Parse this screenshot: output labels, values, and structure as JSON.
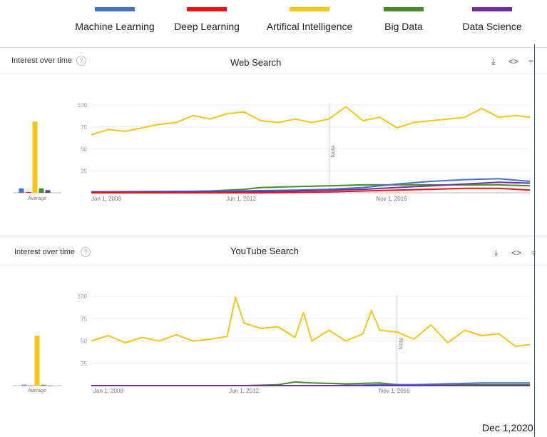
{
  "legend": [
    {
      "label": "Machine Learning",
      "color": "#4472c4"
    },
    {
      "label": "Deep Learning",
      "color": "#ee1111"
    },
    {
      "label": "Artifical Intelligence",
      "color": "#f5c518"
    },
    {
      "label": "Big Data",
      "color": "#4a8a2e"
    },
    {
      "label": "Data Science",
      "color": "#7030a0"
    }
  ],
  "panels": [
    {
      "heading": "Interest over time",
      "title": "Web Search",
      "avg_label": "Average",
      "note": "Note",
      "icons": [
        "download-icon",
        "embed-icon",
        "share-icon"
      ]
    },
    {
      "heading": "Interest over time",
      "title": "YouTube Search",
      "avg_label": "Average",
      "note": "Note",
      "icons": [
        "download-icon",
        "embed-icon",
        "share-icon"
      ]
    }
  ],
  "marker_date": "Dec 1,2020",
  "chart_data": [
    {
      "type": "line",
      "title": "Web Search",
      "x_ticks": [
        "Jan 1, 2008",
        "Jun 1, 2012",
        "Nov 1, 2016"
      ],
      "x_range": [
        "2008-01-01",
        "2020-12-01"
      ],
      "y_ticks": [
        25,
        50,
        75,
        100
      ],
      "ylim": [
        0,
        100
      ],
      "grid": true,
      "note_date": "2015-01-01",
      "averages": [
        {
          "name": "Machine Learning",
          "value": 5
        },
        {
          "name": "Deep Learning",
          "value": 1
        },
        {
          "name": "Artifical Intelligence",
          "value": 81
        },
        {
          "name": "Big Data",
          "value": 5
        },
        {
          "name": "Data Science",
          "value": 3
        }
      ],
      "series": [
        {
          "name": "Artifical Intelligence",
          "x": [
            "2008-01-01",
            "2008-07-01",
            "2009-01-01",
            "2009-07-01",
            "2010-01-01",
            "2010-07-01",
            "2011-01-01",
            "2011-07-01",
            "2012-01-01",
            "2012-07-01",
            "2013-01-01",
            "2013-07-01",
            "2014-01-01",
            "2014-07-01",
            "2015-01-01",
            "2015-07-01",
            "2016-01-01",
            "2016-07-01",
            "2017-01-01",
            "2017-07-01",
            "2018-01-01",
            "2018-07-01",
            "2019-01-01",
            "2019-07-01",
            "2020-01-01",
            "2020-07-01",
            "2020-12-01"
          ],
          "values": [
            66,
            72,
            70,
            74,
            78,
            80,
            88,
            84,
            90,
            92,
            82,
            80,
            84,
            80,
            84,
            98,
            82,
            86,
            74,
            80,
            82,
            84,
            86,
            96,
            86,
            88,
            86
          ]
        },
        {
          "name": "Big Data",
          "x": [
            "2008-01-01",
            "2010-01-01",
            "2011-07-01",
            "2012-07-01",
            "2013-01-01",
            "2014-01-01",
            "2015-01-01",
            "2016-01-01",
            "2017-01-01",
            "2018-01-01",
            "2019-01-01",
            "2020-01-01",
            "2020-12-01"
          ],
          "values": [
            1,
            1,
            2,
            4,
            6,
            7,
            8,
            9,
            9,
            9,
            9,
            9,
            8
          ]
        },
        {
          "name": "Machine Learning",
          "x": [
            "2008-01-01",
            "2012-01-01",
            "2014-01-01",
            "2015-01-01",
            "2016-01-01",
            "2017-01-01",
            "2018-01-01",
            "2019-01-01",
            "2020-01-01",
            "2020-12-01"
          ],
          "values": [
            1,
            2,
            3,
            4,
            6,
            10,
            13,
            15,
            16,
            13
          ]
        },
        {
          "name": "Data Science",
          "x": [
            "2008-01-01",
            "2012-01-01",
            "2014-01-01",
            "2015-01-01",
            "2016-01-01",
            "2017-01-01",
            "2018-01-01",
            "2019-01-01",
            "2020-01-01",
            "2020-12-01"
          ],
          "values": [
            1,
            1,
            2,
            3,
            4,
            6,
            8,
            10,
            12,
            11
          ]
        },
        {
          "name": "Deep Learning",
          "x": [
            "2008-01-01",
            "2013-01-01",
            "2015-01-01",
            "2016-01-01",
            "2017-01-01",
            "2018-01-01",
            "2019-01-01",
            "2020-01-01",
            "2020-12-01"
          ],
          "values": [
            0,
            0,
            1,
            2,
            3,
            4,
            5,
            5,
            3
          ]
        }
      ]
    },
    {
      "type": "line",
      "title": "YouTube Search",
      "x_ticks": [
        "Jan 1, 2008",
        "Jun 1, 2012",
        "Nov 1, 2016"
      ],
      "x_range": [
        "2008-01-01",
        "2020-12-01"
      ],
      "y_ticks": [
        25,
        50,
        75,
        100
      ],
      "ylim": [
        0,
        100
      ],
      "grid": true,
      "note_date": "2017-01-01",
      "averages": [
        {
          "name": "Machine Learning",
          "value": 1
        },
        {
          "name": "Deep Learning",
          "value": 0
        },
        {
          "name": "Artifical Intelligence",
          "value": 56
        },
        {
          "name": "Big Data",
          "value": 1
        },
        {
          "name": "Data Science",
          "value": 0
        }
      ],
      "series": [
        {
          "name": "Artifical Intelligence",
          "x": [
            "2008-01-01",
            "2008-07-01",
            "2009-01-01",
            "2009-07-01",
            "2010-01-01",
            "2010-07-01",
            "2011-01-01",
            "2011-07-01",
            "2012-01-01",
            "2012-04-01",
            "2012-07-01",
            "2013-01-01",
            "2013-07-01",
            "2014-01-01",
            "2014-04-01",
            "2014-07-01",
            "2015-01-01",
            "2015-07-01",
            "2016-01-01",
            "2016-04-01",
            "2016-07-01",
            "2017-01-01",
            "2017-07-01",
            "2018-01-01",
            "2018-07-01",
            "2019-01-01",
            "2019-07-01",
            "2020-01-01",
            "2020-07-01",
            "2020-12-01"
          ],
          "values": [
            50,
            56,
            48,
            54,
            50,
            57,
            50,
            52,
            55,
            99,
            70,
            64,
            66,
            54,
            82,
            50,
            62,
            50,
            58,
            84,
            62,
            60,
            52,
            68,
            48,
            62,
            56,
            58,
            44,
            46
          ]
        },
        {
          "name": "Big Data",
          "x": [
            "2008-01-01",
            "2012-07-01",
            "2013-07-01",
            "2014-01-01",
            "2014-07-01",
            "2015-07-01",
            "2016-07-01",
            "2017-01-01",
            "2018-01-01",
            "2020-12-01"
          ],
          "values": [
            0,
            0,
            1,
            4,
            3,
            2,
            3,
            1,
            1,
            1
          ]
        },
        {
          "name": "Machine Learning",
          "x": [
            "2008-01-01",
            "2015-01-01",
            "2016-07-01",
            "2017-07-01",
            "2018-07-01",
            "2019-07-01",
            "2020-12-01"
          ],
          "values": [
            0,
            0,
            1,
            1,
            2,
            3,
            3
          ]
        },
        {
          "name": "Deep Learning",
          "x": [
            "2008-01-01",
            "2020-12-01"
          ],
          "values": [
            0,
            0
          ]
        },
        {
          "name": "Data Science",
          "x": [
            "2008-01-01",
            "2020-12-01"
          ],
          "values": [
            0,
            0
          ]
        }
      ]
    }
  ]
}
